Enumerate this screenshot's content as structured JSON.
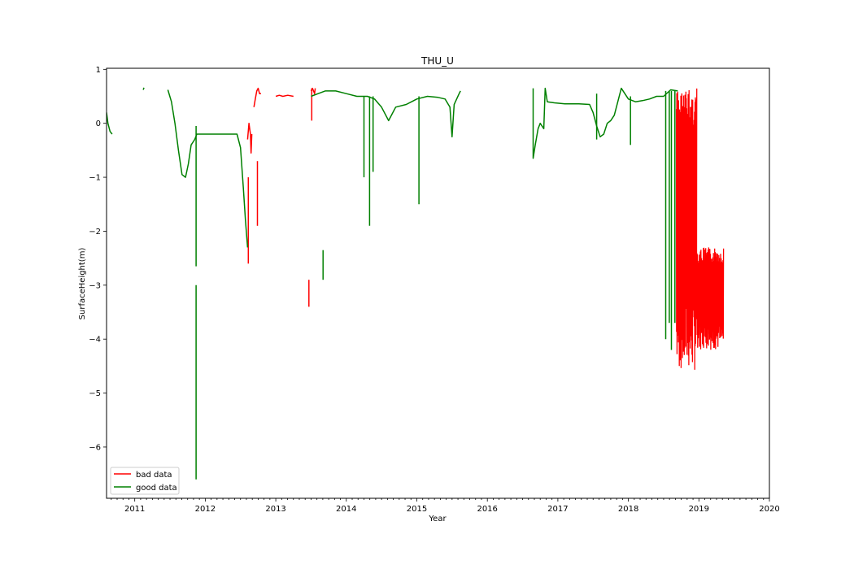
{
  "chart_data": {
    "type": "line",
    "title": "THU_U",
    "xlabel": "Year",
    "ylabel": "SurfaceHeight(m)",
    "xlim": [
      2010.6,
      2020.0
    ],
    "ylim": [
      -6.95,
      1.02
    ],
    "x_ticks": [
      "2011",
      "2012",
      "2013",
      "2014",
      "2015",
      "2016",
      "2017",
      "2018",
      "2019",
      "2020"
    ],
    "y_ticks": [
      1,
      0,
      -1,
      -2,
      -3,
      -4,
      -5,
      -6
    ],
    "y_tick_labels": [
      "1",
      "0",
      "−1",
      "−2",
      "−3",
      "−4",
      "−5",
      "−6"
    ],
    "grid": false,
    "legend_position": "lower-left",
    "legend": [
      {
        "label": "bad data",
        "color": "#ff0000"
      },
      {
        "label": "good data",
        "color": "#008000"
      }
    ],
    "series": [
      {
        "name": "bad data",
        "color": "#ff0000",
        "segments": [
          [
            [
              2012.6,
              -0.3
            ],
            [
              2012.62,
              0.0
            ],
            [
              2012.64,
              -0.2
            ],
            [
              2012.65,
              -0.55
            ],
            [
              2012.66,
              -0.2
            ]
          ],
          [
            [
              2012.61,
              -1.0
            ],
            [
              2012.61,
              -2.6
            ]
          ],
          [
            [
              2012.74,
              -0.7
            ],
            [
              2012.74,
              -1.9
            ]
          ],
          [
            [
              2012.69,
              0.3
            ],
            [
              2012.71,
              0.45
            ],
            [
              2012.73,
              0.6
            ],
            [
              2012.75,
              0.65
            ],
            [
              2012.77,
              0.55
            ],
            [
              2012.79,
              0.55
            ]
          ],
          [
            [
              2013.0,
              0.5
            ],
            [
              2013.05,
              0.52
            ],
            [
              2013.1,
              0.5
            ],
            [
              2013.17,
              0.52
            ],
            [
              2013.25,
              0.5
            ]
          ],
          [
            [
              2013.47,
              -2.9
            ],
            [
              2013.47,
              -3.4
            ]
          ],
          [
            [
              2013.5,
              0.6
            ],
            [
              2013.52,
              0.65
            ],
            [
              2013.55,
              0.55
            ],
            [
              2013.56,
              0.65
            ]
          ],
          [
            [
              2013.51,
              0.65
            ],
            [
              2013.51,
              0.05
            ]
          ]
        ],
        "bands": [
          {
            "x_start": 2018.68,
            "x_end": 2018.97,
            "y_low": -4.6,
            "y_high": 0.65
          },
          {
            "x_start": 2018.97,
            "x_end": 2019.35,
            "y_low": -4.2,
            "y_high": -2.3
          }
        ]
      },
      {
        "name": "good data",
        "color": "#008000",
        "segments": [
          [
            [
              2010.6,
              0.2
            ],
            [
              2010.62,
              0.0
            ],
            [
              2010.65,
              -0.15
            ],
            [
              2010.68,
              -0.2
            ]
          ],
          [
            [
              2011.12,
              0.62
            ],
            [
              2011.13,
              0.66
            ]
          ],
          [
            [
              2011.47,
              0.62
            ],
            [
              2011.52,
              0.4
            ],
            [
              2011.57,
              0.0
            ],
            [
              2011.62,
              -0.5
            ],
            [
              2011.67,
              -0.95
            ],
            [
              2011.72,
              -1.0
            ],
            [
              2011.76,
              -0.75
            ],
            [
              2011.8,
              -0.4
            ],
            [
              2011.85,
              -0.3
            ],
            [
              2011.88,
              -0.2
            ],
            [
              2011.95,
              -0.2
            ],
            [
              2012.1,
              -0.2
            ],
            [
              2012.3,
              -0.2
            ],
            [
              2012.45,
              -0.2
            ],
            [
              2012.5,
              -0.45
            ],
            [
              2012.54,
              -1.2
            ],
            [
              2012.57,
              -1.8
            ],
            [
              2012.6,
              -2.3
            ]
          ],
          [
            [
              2011.87,
              -0.05
            ],
            [
              2011.87,
              -2.65
            ]
          ],
          [
            [
              2011.87,
              -3.0
            ],
            [
              2011.87,
              -6.6
            ]
          ],
          [
            [
              2013.5,
              0.5
            ],
            [
              2013.6,
              0.55
            ],
            [
              2013.7,
              0.6
            ],
            [
              2013.85,
              0.6
            ],
            [
              2014.0,
              0.55
            ],
            [
              2014.15,
              0.5
            ],
            [
              2014.3,
              0.5
            ],
            [
              2014.4,
              0.45
            ],
            [
              2014.5,
              0.3
            ],
            [
              2014.6,
              0.05
            ],
            [
              2014.7,
              0.3
            ],
            [
              2014.85,
              0.35
            ],
            [
              2015.0,
              0.45
            ],
            [
              2015.15,
              0.5
            ],
            [
              2015.3,
              0.48
            ],
            [
              2015.4,
              0.45
            ],
            [
              2015.47,
              0.3
            ],
            [
              2015.5,
              -0.25
            ],
            [
              2015.53,
              0.35
            ],
            [
              2015.6,
              0.55
            ],
            [
              2015.62,
              0.6
            ]
          ],
          [
            [
              2013.67,
              -2.35
            ],
            [
              2013.67,
              -2.9
            ]
          ],
          [
            [
              2014.25,
              0.5
            ],
            [
              2014.25,
              -1.0
            ]
          ],
          [
            [
              2014.33,
              0.5
            ],
            [
              2014.33,
              -1.9
            ]
          ],
          [
            [
              2014.38,
              0.5
            ],
            [
              2014.38,
              -0.9
            ]
          ],
          [
            [
              2015.03,
              0.5
            ],
            [
              2015.03,
              -1.5
            ]
          ],
          [
            [
              2016.65,
              0.65
            ],
            [
              2016.65,
              -0.65
            ],
            [
              2016.68,
              -0.4
            ],
            [
              2016.72,
              -0.1
            ],
            [
              2016.75,
              0.0
            ],
            [
              2016.8,
              -0.1
            ],
            [
              2016.82,
              0.65
            ],
            [
              2016.85,
              0.4
            ],
            [
              2016.95,
              0.38
            ],
            [
              2017.1,
              0.36
            ],
            [
              2017.3,
              0.36
            ],
            [
              2017.45,
              0.35
            ],
            [
              2017.5,
              0.2
            ],
            [
              2017.55,
              -0.05
            ],
            [
              2017.6,
              -0.25
            ],
            [
              2017.65,
              -0.2
            ],
            [
              2017.7,
              0.0
            ],
            [
              2017.75,
              0.05
            ],
            [
              2017.8,
              0.15
            ],
            [
              2017.9,
              0.65
            ],
            [
              2018.0,
              0.45
            ],
            [
              2018.1,
              0.4
            ],
            [
              2018.2,
              0.42
            ],
            [
              2018.3,
              0.45
            ],
            [
              2018.4,
              0.5
            ],
            [
              2018.5,
              0.5
            ],
            [
              2018.6,
              0.62
            ],
            [
              2018.7,
              0.6
            ]
          ],
          [
            [
              2017.55,
              0.55
            ],
            [
              2017.55,
              -0.3
            ]
          ],
          [
            [
              2018.03,
              0.5
            ],
            [
              2018.03,
              -0.4
            ]
          ],
          [
            [
              2018.53,
              0.6
            ],
            [
              2018.53,
              -4.0
            ]
          ],
          [
            [
              2018.58,
              0.6
            ],
            [
              2018.58,
              -3.7
            ]
          ],
          [
            [
              2018.61,
              0.6
            ],
            [
              2018.61,
              -4.2
            ]
          ],
          [
            [
              2018.66,
              0.6
            ],
            [
              2018.66,
              -3.7
            ]
          ]
        ]
      }
    ]
  }
}
